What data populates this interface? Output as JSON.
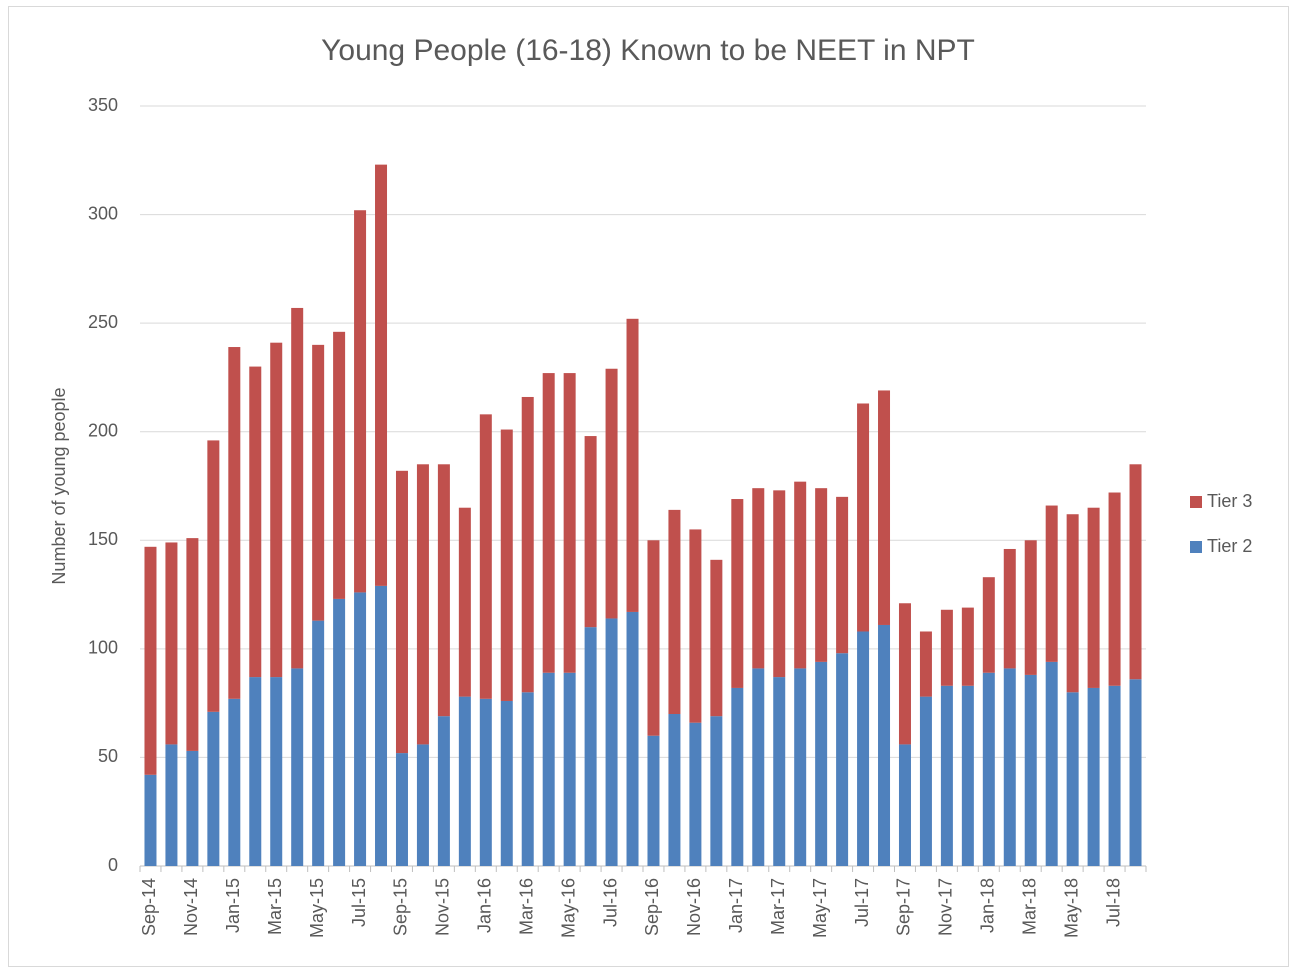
{
  "chart_data": {
    "type": "stacked_bar",
    "title": "Young People (16-18) Known to be NEET in NPT",
    "y_label": "Number of young people",
    "categories": [
      "Sep-14",
      null,
      "Nov-14",
      null,
      "Jan-15",
      null,
      "Mar-15",
      null,
      "May-15",
      null,
      "Jul-15",
      null,
      "Sep-15",
      null,
      "Nov-15",
      null,
      "Jan-16",
      null,
      "Mar-16",
      null,
      "May-16",
      null,
      "Jul-16",
      null,
      "Sep-16",
      null,
      "Nov-16",
      null,
      "Jan-17",
      null,
      "Mar-17",
      null,
      "May-17",
      null,
      "Jul-17",
      null,
      "Sep-17",
      null,
      "Nov-17",
      null,
      "Jan-18",
      null,
      "Mar-18",
      null,
      "May-18",
      null,
      "Jul-18",
      null
    ],
    "series": [
      {
        "name": "Tier 2",
        "color": "#4f81bd",
        "values": [
          42,
          56,
          53,
          71,
          77,
          87,
          87,
          91,
          113,
          123,
          126,
          129,
          52,
          56,
          69,
          78,
          77,
          76,
          80,
          89,
          89,
          110,
          114,
          117,
          60,
          70,
          66,
          69,
          82,
          91,
          87,
          91,
          94,
          98,
          108,
          111,
          56,
          78,
          83,
          83,
          89,
          91,
          88,
          94,
          80,
          82,
          83,
          86
        ]
      },
      {
        "name": "Tier 3",
        "color": "#c0504d",
        "values": [
          105,
          93,
          98,
          125,
          162,
          143,
          154,
          166,
          127,
          123,
          176,
          194,
          130,
          129,
          116,
          87,
          131,
          125,
          136,
          138,
          138,
          88,
          115,
          135,
          90,
          94,
          89,
          72,
          87,
          83,
          86,
          86,
          80,
          72,
          105,
          108,
          65,
          30,
          35,
          36,
          44,
          55,
          62,
          72,
          82,
          83,
          89,
          99
        ]
      }
    ],
    "ylim": [
      0,
      350
    ],
    "yticks": [
      0,
      50,
      100,
      150,
      200,
      250,
      300,
      350
    ],
    "grid": true,
    "legend": "right"
  }
}
